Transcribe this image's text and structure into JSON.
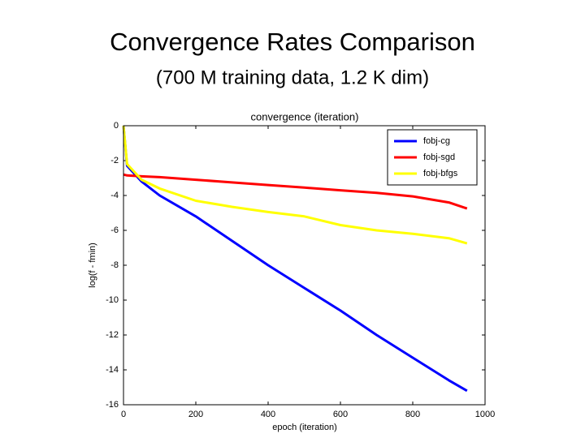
{
  "slide": {
    "title": "Convergence Rates Comparison",
    "subtitle": "(700 M training data, 1.2 K dim)"
  },
  "chart_data": {
    "type": "line",
    "title": "convergence (iteration)",
    "x_label": "epoch (iteration)",
    "y_label": "log(f - fmin)",
    "x": [
      0,
      10,
      50,
      100,
      200,
      300,
      400,
      500,
      600,
      700,
      800,
      900,
      950
    ],
    "series": [
      {
        "name": "fobj-cg",
        "color": "#0000ff",
        "values": [
          0,
          -2.3,
          -3.2,
          -4.0,
          -5.2,
          -6.6,
          -8.0,
          -9.3,
          -10.6,
          -12.0,
          -13.3,
          -14.6,
          -15.2
        ]
      },
      {
        "name": "fobj-sgd",
        "color": "#ff0000",
        "values": [
          -2.8,
          -2.85,
          -2.9,
          -2.95,
          -3.1,
          -3.25,
          -3.4,
          -3.55,
          -3.7,
          -3.85,
          -4.05,
          -4.4,
          -4.75
        ]
      },
      {
        "name": "fobj-bfgs",
        "color": "#ffff00",
        "values": [
          0,
          -2.2,
          -3.1,
          -3.6,
          -4.3,
          -4.65,
          -4.95,
          -5.2,
          -5.7,
          -6.0,
          -6.2,
          -6.45,
          -6.75
        ]
      }
    ],
    "xlim": [
      0,
      1000
    ],
    "xticks": [
      0,
      200,
      400,
      600,
      800,
      1000
    ],
    "ylim": [
      -16,
      0
    ],
    "yticks": [
      -16,
      -14,
      -12,
      -10,
      -8,
      -6,
      -4,
      -2,
      0
    ],
    "grid": false,
    "legend": "upper-right"
  }
}
